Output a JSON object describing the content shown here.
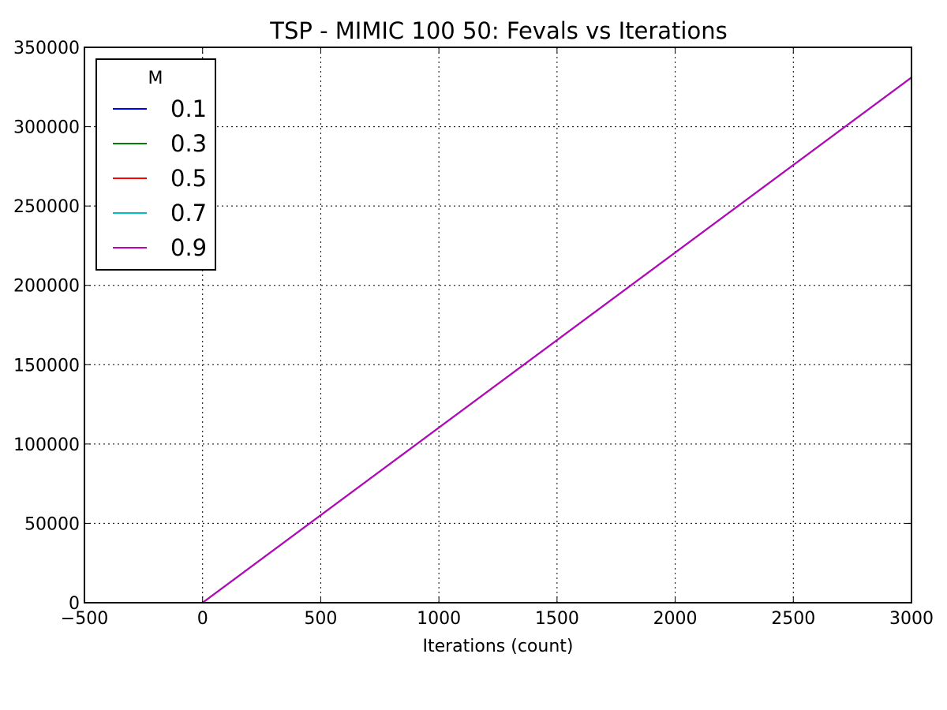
{
  "chart_data": {
    "type": "line",
    "title": "TSP - MIMIC 100 50: Fevals vs Iterations",
    "xlabel": "Iterations (count)",
    "ylabel": "",
    "xlim": [
      -500,
      3000
    ],
    "ylim": [
      0,
      350000
    ],
    "xticks": [
      -500,
      0,
      500,
      1000,
      1500,
      2000,
      2500,
      3000
    ],
    "xtick_labels": [
      "−500",
      "0",
      "500",
      "1000",
      "1500",
      "2000",
      "2500",
      "3000"
    ],
    "yticks": [
      0,
      50000,
      100000,
      150000,
      200000,
      250000,
      300000,
      350000
    ],
    "ytick_labels": [
      "0",
      "50000",
      "100000",
      "150000",
      "200000",
      "250000",
      "300000",
      "350000"
    ],
    "grid": true,
    "legend": {
      "title": "M",
      "placement": "top-left"
    },
    "series": [
      {
        "name": "0.1",
        "color": "#0000ff",
        "x": [
          0,
          3000
        ],
        "y": [
          0,
          331000
        ]
      },
      {
        "name": "0.3",
        "color": "#008000",
        "x": [
          0,
          3000
        ],
        "y": [
          0,
          331000
        ]
      },
      {
        "name": "0.5",
        "color": "#ff0000",
        "x": [
          0,
          3000
        ],
        "y": [
          0,
          331000
        ]
      },
      {
        "name": "0.7",
        "color": "#00bfbf",
        "x": [
          0,
          3000
        ],
        "y": [
          0,
          331000
        ]
      },
      {
        "name": "0.9",
        "color": "#bf00bf",
        "x": [
          0,
          3000
        ],
        "y": [
          0,
          331000
        ]
      }
    ]
  }
}
